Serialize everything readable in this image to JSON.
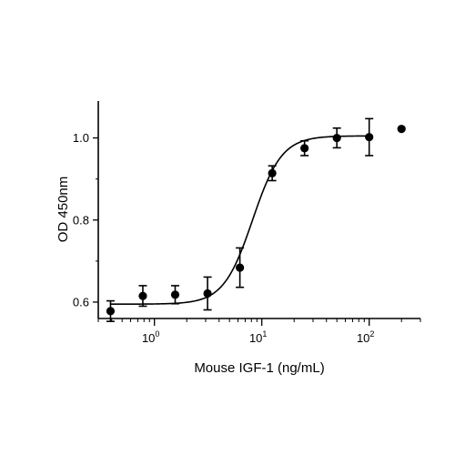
{
  "chart_data": {
    "type": "scatter",
    "xlabel": "Mouse IGF-1 (ng/mL)",
    "ylabel": "OD 450nm",
    "x_scale": "log",
    "xlim": [
      0.3,
      300
    ],
    "ylim": [
      0.56,
      1.09
    ],
    "x_ticks": [
      {
        "value": 1,
        "base": "10",
        "exp": "0"
      },
      {
        "value": 10,
        "base": "10",
        "exp": "1"
      },
      {
        "value": 100,
        "base": "10",
        "exp": "2"
      }
    ],
    "y_ticks": [
      {
        "value": 0.6,
        "label": "0.6"
      },
      {
        "value": 0.8,
        "label": "0.8"
      },
      {
        "value": 1.0,
        "label": "1.0"
      }
    ],
    "grid": false,
    "series": [
      {
        "points": [
          {
            "x": 0.39,
            "y": 0.578,
            "err": 0.025
          },
          {
            "x": 0.78,
            "y": 0.615,
            "err": 0.025
          },
          {
            "x": 1.56,
            "y": 0.618,
            "err": 0.022
          },
          {
            "x": 3.125,
            "y": 0.621,
            "err": 0.04
          },
          {
            "x": 6.25,
            "y": 0.684,
            "err": 0.048
          },
          {
            "x": 12.5,
            "y": 0.914,
            "err": 0.018
          },
          {
            "x": 25,
            "y": 0.975,
            "err": 0.018
          },
          {
            "x": 50,
            "y": 1.0,
            "err": 0.024
          },
          {
            "x": 100,
            "y": 1.002,
            "err": 0.045
          },
          {
            "x": 200,
            "y": 1.022,
            "err": 0
          }
        ],
        "fit": {
          "model": "4PL",
          "bottom": 0.595,
          "top": 1.005,
          "ec50": 8.2,
          "hill": 3.2
        }
      }
    ]
  }
}
